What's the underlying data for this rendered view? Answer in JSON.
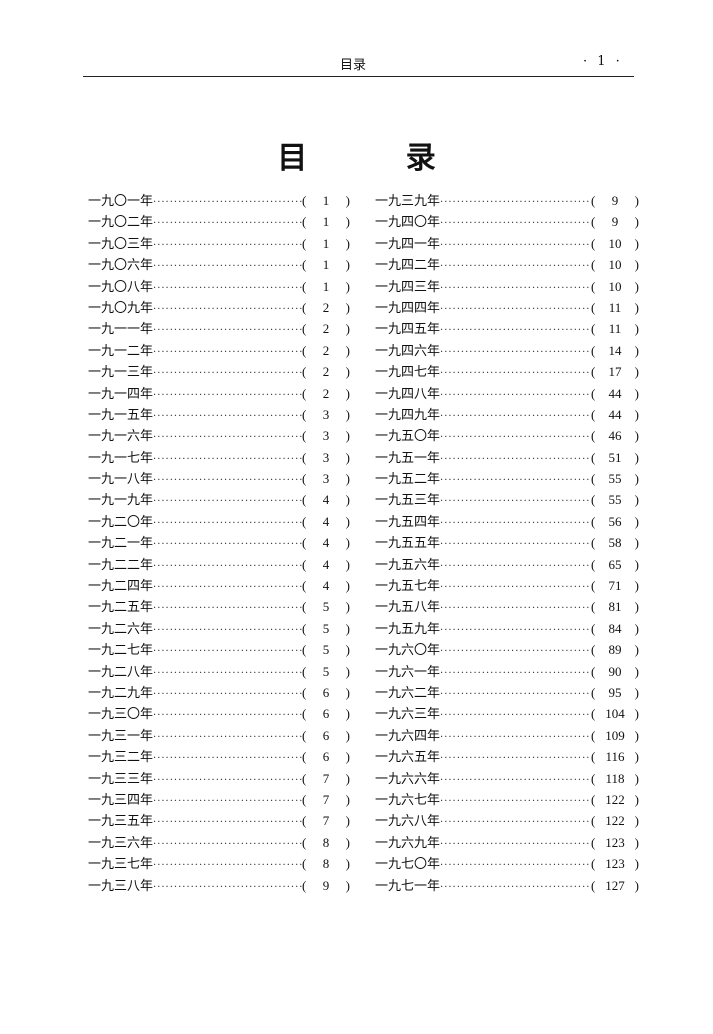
{
  "header": {
    "running_title": "目录",
    "page_number": "· 1 ·"
  },
  "title": "目 录",
  "toc": {
    "left": [
      {
        "year": "一九〇一年",
        "page": "1"
      },
      {
        "year": "一九〇二年",
        "page": "1"
      },
      {
        "year": "一九〇三年",
        "page": "1"
      },
      {
        "year": "一九〇六年",
        "page": "1"
      },
      {
        "year": "一九〇八年",
        "page": "1"
      },
      {
        "year": "一九〇九年",
        "page": "2"
      },
      {
        "year": "一九一一年",
        "page": "2"
      },
      {
        "year": "一九一二年",
        "page": "2"
      },
      {
        "year": "一九一三年",
        "page": "2"
      },
      {
        "year": "一九一四年",
        "page": "2"
      },
      {
        "year": "一九一五年",
        "page": "3"
      },
      {
        "year": "一九一六年",
        "page": "3"
      },
      {
        "year": "一九一七年",
        "page": "3"
      },
      {
        "year": "一九一八年",
        "page": "3"
      },
      {
        "year": "一九一九年",
        "page": "4"
      },
      {
        "year": "一九二〇年",
        "page": "4"
      },
      {
        "year": "一九二一年",
        "page": "4"
      },
      {
        "year": "一九二二年",
        "page": "4"
      },
      {
        "year": "一九二四年",
        "page": "4"
      },
      {
        "year": "一九二五年",
        "page": "5"
      },
      {
        "year": "一九二六年",
        "page": "5"
      },
      {
        "year": "一九二七年",
        "page": "5"
      },
      {
        "year": "一九二八年",
        "page": "5"
      },
      {
        "year": "一九二九年",
        "page": "6"
      },
      {
        "year": "一九三〇年",
        "page": "6"
      },
      {
        "year": "一九三一年",
        "page": "6"
      },
      {
        "year": "一九三二年",
        "page": "6"
      },
      {
        "year": "一九三三年",
        "page": "7"
      },
      {
        "year": "一九三四年",
        "page": "7"
      },
      {
        "year": "一九三五年",
        "page": "7"
      },
      {
        "year": "一九三六年",
        "page": "8"
      },
      {
        "year": "一九三七年",
        "page": "8"
      },
      {
        "year": "一九三八年",
        "page": "9"
      }
    ],
    "right": [
      {
        "year": "一九三九年",
        "page": "9"
      },
      {
        "year": "一九四〇年",
        "page": "9"
      },
      {
        "year": "一九四一年",
        "page": "10"
      },
      {
        "year": "一九四二年",
        "page": "10"
      },
      {
        "year": "一九四三年",
        "page": "10"
      },
      {
        "year": "一九四四年",
        "page": "11"
      },
      {
        "year": "一九四五年",
        "page": "11"
      },
      {
        "year": "一九四六年",
        "page": "14"
      },
      {
        "year": "一九四七年",
        "page": "17"
      },
      {
        "year": "一九四八年",
        "page": "44"
      },
      {
        "year": "一九四九年",
        "page": "44"
      },
      {
        "year": "一九五〇年",
        "page": "46"
      },
      {
        "year": "一九五一年",
        "page": "51"
      },
      {
        "year": "一九五二年",
        "page": "55"
      },
      {
        "year": "一九五三年",
        "page": "55"
      },
      {
        "year": "一九五四年",
        "page": "56"
      },
      {
        "year": "一九五五年",
        "page": "58"
      },
      {
        "year": "一九五六年",
        "page": "65"
      },
      {
        "year": "一九五七年",
        "page": "71"
      },
      {
        "year": "一九五八年",
        "page": "81"
      },
      {
        "year": "一九五九年",
        "page": "84"
      },
      {
        "year": "一九六〇年",
        "page": "89"
      },
      {
        "year": "一九六一年",
        "page": "90"
      },
      {
        "year": "一九六二年",
        "page": "95"
      },
      {
        "year": "一九六三年",
        "page": "104"
      },
      {
        "year": "一九六四年",
        "page": "109"
      },
      {
        "year": "一九六五年",
        "page": "116"
      },
      {
        "year": "一九六六年",
        "page": "118"
      },
      {
        "year": "一九六七年",
        "page": "122"
      },
      {
        "year": "一九六八年",
        "page": "122"
      },
      {
        "year": "一九六九年",
        "page": "123"
      },
      {
        "year": "一九七〇年",
        "page": "123"
      },
      {
        "year": "一九七一年",
        "page": "127"
      }
    ]
  }
}
